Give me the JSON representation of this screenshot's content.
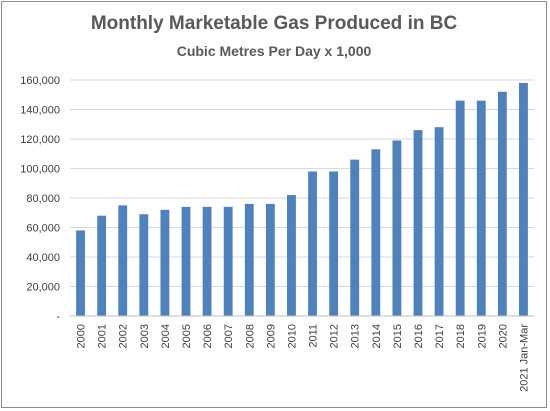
{
  "chart_data": {
    "type": "bar",
    "title": "Monthly Marketable Gas Produced in BC",
    "subtitle": "Cubic Metres Per Day x 1,000",
    "xlabel": "",
    "ylabel": "",
    "ylim": [
      0,
      160000
    ],
    "yticks": [
      0,
      20000,
      40000,
      60000,
      80000,
      100000,
      120000,
      140000,
      160000
    ],
    "ytick_labels": [
      "-",
      "20,000",
      "40,000",
      "60,000",
      "80,000",
      "100,000",
      "120,000",
      "140,000",
      "160,000"
    ],
    "grid": true,
    "legend": "none",
    "bar_color": "#4f81bd",
    "categories": [
      "2000",
      "2001",
      "2002",
      "2003",
      "2004",
      "2005",
      "2006",
      "2007",
      "2008",
      "2009",
      "2010",
      "2011",
      "2012",
      "2013",
      "2014",
      "2015",
      "2016",
      "2017",
      "2018",
      "2019",
      "2020",
      "2021 Jan-Mar"
    ],
    "values": [
      58000,
      68000,
      75000,
      69000,
      72000,
      74000,
      74000,
      74000,
      76000,
      76000,
      82000,
      98000,
      98000,
      106000,
      113000,
      119000,
      126000,
      128000,
      146000,
      146000,
      152000,
      158000
    ]
  }
}
